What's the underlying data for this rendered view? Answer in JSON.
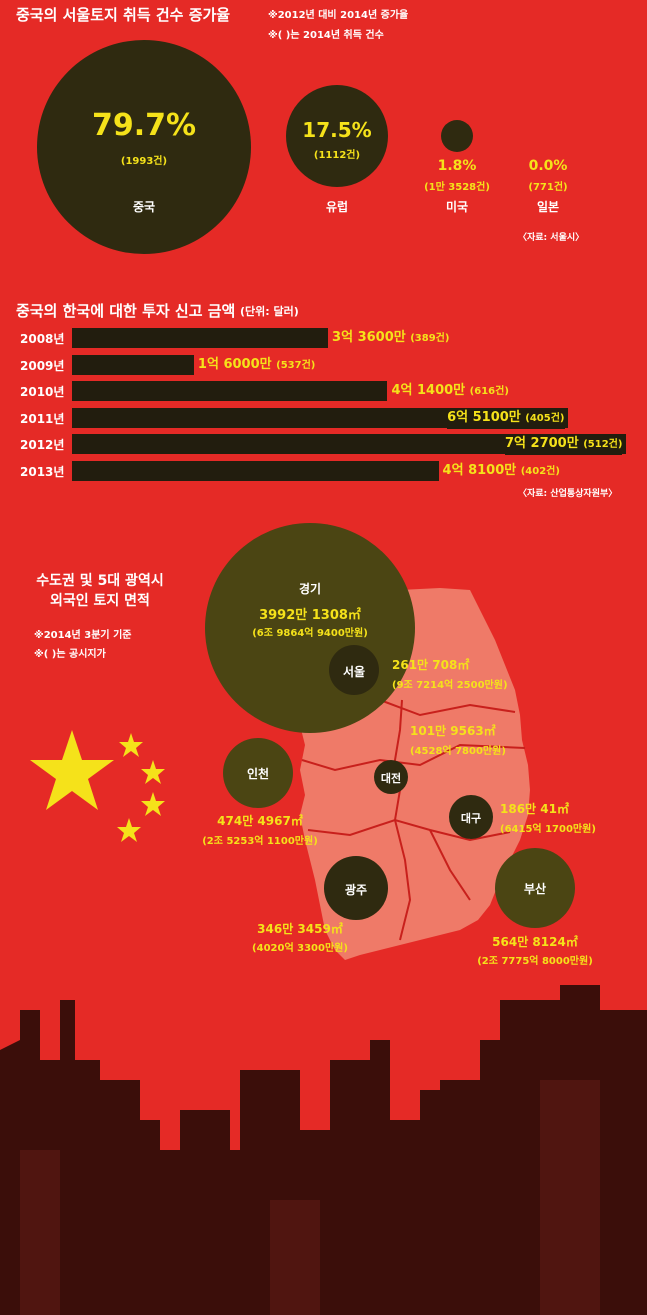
{
  "section1": {
    "title": "중국의 서울토지 취득 건수 증가율",
    "note1": "※2012년 대비 2014년 증가율",
    "note2": "※(   )는 2014년 취득 건수",
    "source": "〈자료: 서울시〉",
    "items": [
      {
        "pct": "79.7%",
        "count": "(1993건)",
        "name": "중국"
      },
      {
        "pct": "17.5%",
        "count": "(1112건)",
        "name": "유럽"
      },
      {
        "pct": "1.8%",
        "count": "(1만 3528건)",
        "name": "미국"
      },
      {
        "pct": "0.0%",
        "count": "(771건)",
        "name": "일본"
      }
    ]
  },
  "section2": {
    "title": "중국의 한국에 대한 투자 신고 금액",
    "unit": "(단위: 달러)",
    "source": "〈자료: 산업통상자원부〉",
    "colors": {
      "bar": "#221d0e",
      "label": "#f5e21a"
    }
  },
  "chart_data": {
    "type": "bar",
    "orientation": "horizontal",
    "title": "중국의 한국에 대한 투자 신고 금액",
    "unit": "(단위: 달러)",
    "categories": [
      "2008년",
      "2009년",
      "2010년",
      "2011년",
      "2012년",
      "2013년"
    ],
    "values": [
      336000000,
      160000000,
      414000000,
      651000000,
      727000000,
      481000000
    ],
    "value_labels": [
      "3억 3600만",
      "1억 6000만",
      "4억 1400만",
      "6억 5100만",
      "7억 2700만",
      "4억 8100만"
    ],
    "counts": [
      "(389건)",
      "(537건)",
      "(616건)",
      "(405건)",
      "(512건)",
      "(402건)"
    ]
  },
  "section3": {
    "title1": "수도권 및 5대 광역시",
    "title2": "외국인 토지 면적",
    "note1": "※2014년 3분기 기준",
    "note2": "※(   )는 공시지가",
    "regions": [
      {
        "name": "경기",
        "area": "3992만 1308㎡",
        "price": "(6조 9864억 9400만원)"
      },
      {
        "name": "서울",
        "area": "261만 708㎡",
        "price": "(9조 7214억 2500만원)"
      },
      {
        "name": "인천",
        "area": "474만 4967㎡",
        "price": "(2조 5253억 1100만원)"
      },
      {
        "name": "대전",
        "area": "101만 9563㎡",
        "price": "(4528억 7800만원)"
      },
      {
        "name": "대구",
        "area": "186만 41㎡",
        "price": "(6415억 1700만원)"
      },
      {
        "name": "광주",
        "area": "346만 3459㎡",
        "price": "(4020억 3300만원)"
      },
      {
        "name": "부산",
        "area": "564만 8124㎡",
        "price": "(2조 7775억 8000만원)"
      }
    ]
  }
}
